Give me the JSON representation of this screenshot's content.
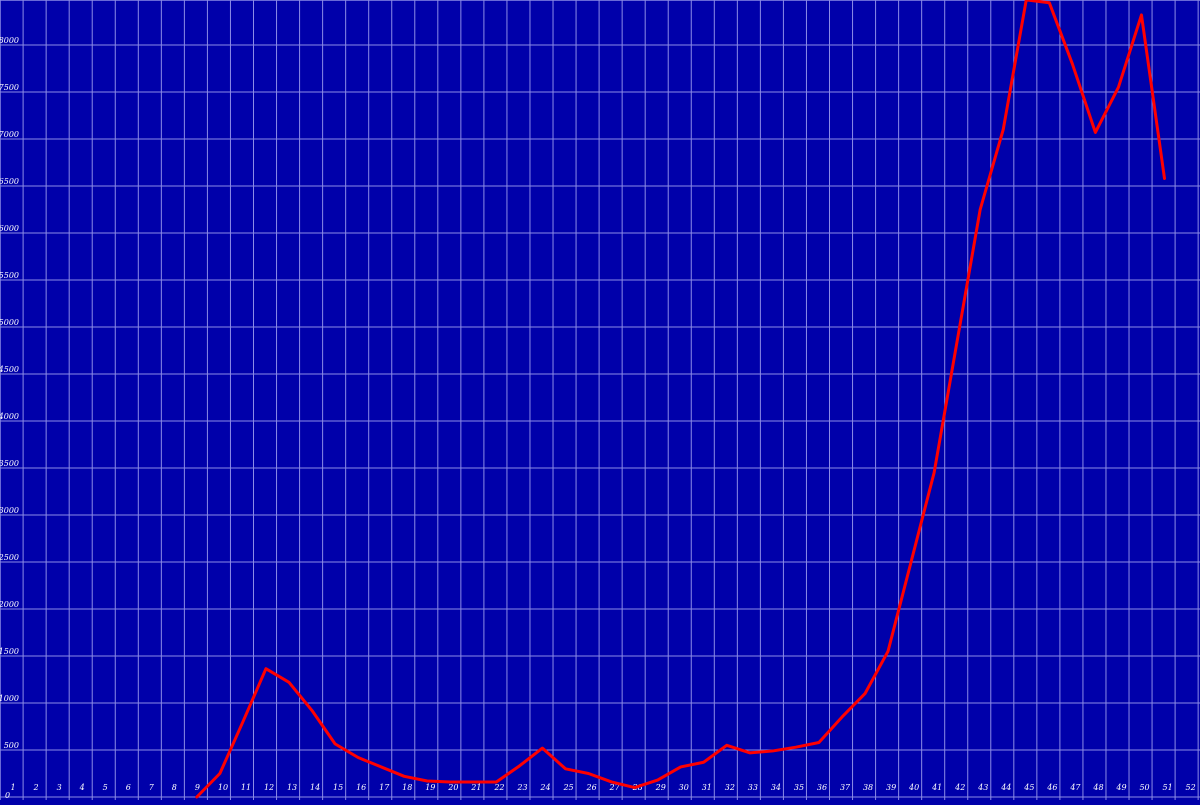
{
  "colors": {
    "background": "#0000AA",
    "grid": "#8C8CE6",
    "line": "#FF0000",
    "text": "#FFFFFF"
  },
  "chart_data": {
    "type": "line",
    "title": "",
    "xlabel": "",
    "ylabel": "",
    "grid": true,
    "legend": "none",
    "xlim": [
      1,
      52
    ],
    "ylim": [
      0,
      8500
    ],
    "x_ticks": [
      1,
      2,
      3,
      4,
      5,
      6,
      7,
      8,
      9,
      10,
      11,
      12,
      13,
      14,
      15,
      16,
      17,
      18,
      19,
      20,
      21,
      22,
      23,
      24,
      25,
      26,
      27,
      28,
      29,
      30,
      31,
      32,
      33,
      34,
      35,
      36,
      37,
      38,
      39,
      40,
      41,
      42,
      43,
      44,
      45,
      46,
      47,
      48,
      49,
      50,
      51,
      52
    ],
    "y_ticks": [
      0,
      500,
      1000,
      1500,
      2000,
      2500,
      3000,
      3500,
      4000,
      4500,
      5000,
      5500,
      6000,
      6500,
      7000,
      7500,
      8000
    ],
    "series": [
      {
        "name": "",
        "x": [
          9,
          10,
          11,
          12,
          13,
          14,
          15,
          16,
          17,
          18,
          19,
          20,
          21,
          22,
          23,
          24,
          25,
          26,
          27,
          28,
          29,
          30,
          31,
          32,
          33,
          34,
          35,
          36,
          37,
          38,
          39,
          40,
          41,
          42,
          43,
          44,
          45,
          46,
          47,
          48,
          49,
          50,
          51
        ],
        "y": [
          0,
          250,
          800,
          1365,
          1220,
          920,
          565,
          420,
          320,
          220,
          170,
          160,
          160,
          160,
          330,
          520,
          300,
          250,
          160,
          100,
          180,
          320,
          370,
          550,
          470,
          490,
          530,
          580,
          850,
          1100,
          1550,
          2500,
          3450,
          4850,
          6250,
          7100,
          8480,
          8450,
          7800,
          7070,
          7550,
          8320,
          6580
        ]
      }
    ]
  }
}
